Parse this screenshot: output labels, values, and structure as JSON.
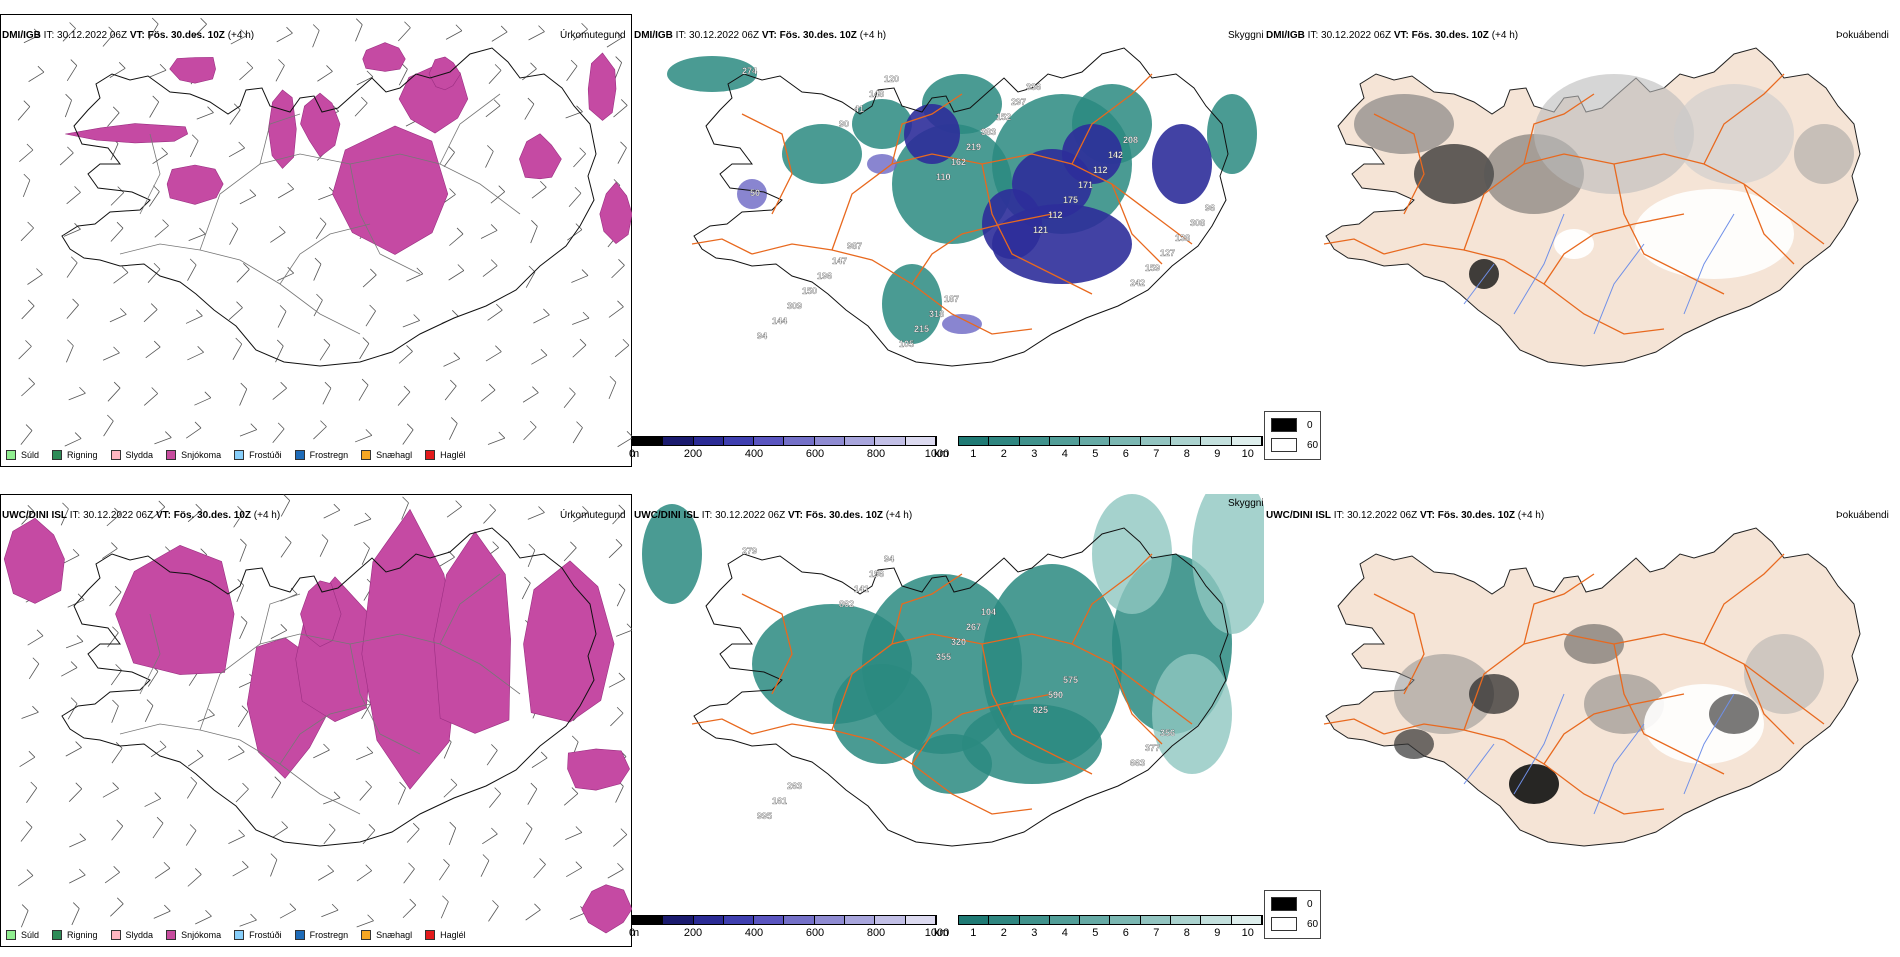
{
  "rows": [
    {
      "id": "dmi",
      "model": "DMI/IGB",
      "it_label": "IT:",
      "it_value": "30.12.2022 06Z",
      "vt_label": "VT:",
      "vt_value": "Fös. 30.des. 10Z",
      "lead": "(+4 h)"
    },
    {
      "id": "uwc",
      "model": "UWC/DINI ISL",
      "it_label": "IT:",
      "it_value": "30.12.2022 06Z",
      "vt_label": "VT:",
      "vt_value": "Fös. 30.des. 10Z",
      "lead": "(+4 h)"
    }
  ],
  "panel_titles": {
    "precip": "Úrkomutegund",
    "visibility": "Skyggni",
    "fog": "Þokuábendi"
  },
  "precip_legend": [
    {
      "label": "Súld",
      "color": "#90ee90"
    },
    {
      "label": "Rigning",
      "color": "#2e8b57"
    },
    {
      "label": "Slydda",
      "color": "#ffb6c1"
    },
    {
      "label": "Snjókoma",
      "color": "#c74c9e"
    },
    {
      "label": "Frostúði",
      "color": "#87cefa"
    },
    {
      "label": "Frostregn",
      "color": "#1e6bb8"
    },
    {
      "label": "Snæhagl",
      "color": "#f5a623"
    },
    {
      "label": "Haglél",
      "color": "#e31a1c"
    }
  ],
  "cloud_base_scale": {
    "unit": "m",
    "ticks": [
      "0",
      "200",
      "400",
      "600",
      "800",
      "1000"
    ],
    "colors": [
      "#000000",
      "#1a1a6e",
      "#2b2b95",
      "#3f3fb0",
      "#5a55c0",
      "#7470c8",
      "#8f8bd2",
      "#a8a5dc",
      "#c2bfe6",
      "#dcdaf0"
    ]
  },
  "visibility_scale": {
    "unit": "km",
    "ticks": [
      "1",
      "2",
      "3",
      "4",
      "5",
      "6",
      "7",
      "8",
      "9",
      "10"
    ],
    "colors": [
      "#1f7a74",
      "#2f8680",
      "#40928c",
      "#529e98",
      "#66aaa5",
      "#7bb7b2",
      "#92c4c0",
      "#aad2ce",
      "#c3e0dd",
      "#ddeeec"
    ]
  },
  "fog_scale": {
    "items": [
      {
        "label": "0",
        "color": "#000000"
      },
      {
        "label": "60",
        "color": "#ffffff"
      }
    ]
  },
  "map_labels": {
    "dmi": [
      "274",
      "90",
      "110",
      "121",
      "242",
      "94",
      "41",
      "162",
      "112",
      "159",
      "144",
      "148",
      "219",
      "175",
      "127",
      "309",
      "120",
      "383",
      "171",
      "138",
      "150",
      "105",
      "152",
      "112",
      "308",
      "196",
      "215",
      "297",
      "142",
      "96",
      "147",
      "318",
      "336",
      "208",
      "50",
      "987",
      "187"
    ],
    "uwc": [
      "279",
      "862",
      "355",
      "825",
      "663",
      "995",
      "141",
      "320",
      "590",
      "377",
      "161",
      "196",
      "267",
      "575",
      "356",
      "263",
      "94",
      "104"
    ]
  },
  "colors": {
    "snow": "#c54aa3",
    "snow_edge": "#9b2f82",
    "rain": "#2e8b57",
    "cloud_dark": "#2e2e9a",
    "cloud_mid": "#6c66c4",
    "vis_teal": "#2a8a80",
    "vis_light": "#8ec7c1",
    "land": "#f5e4d6",
    "roads": "#e8691f",
    "rivers": "#6f8fe8",
    "coast": "#222222"
  }
}
